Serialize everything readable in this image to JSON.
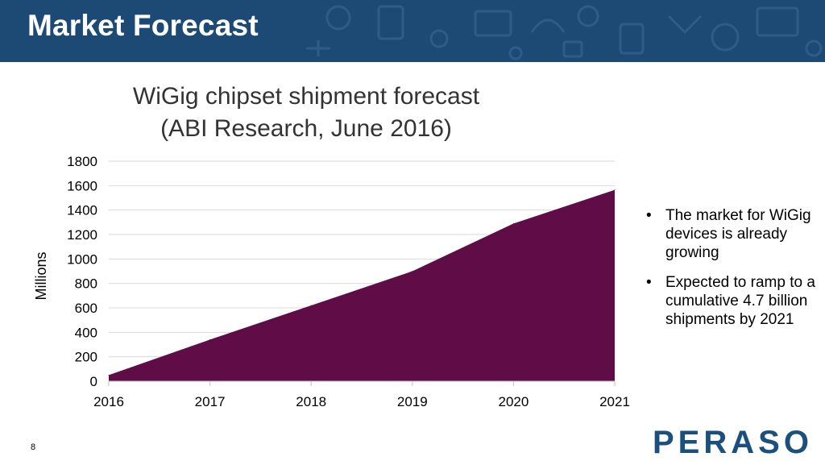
{
  "header": {
    "title": "Market Forecast"
  },
  "chart_data": {
    "type": "area",
    "title": "WiGig chipset shipment forecast (ABI Research, June 2016)",
    "title_lines": [
      "WiGig chipset shipment forecast",
      "(ABI Research, June 2016)"
    ],
    "x": [
      "2016",
      "2017",
      "2018",
      "2019",
      "2020",
      "2021"
    ],
    "values": [
      50,
      340,
      620,
      900,
      1290,
      1565
    ],
    "xlabel": "",
    "ylabel": "Millions",
    "ylim": [
      0,
      1800
    ],
    "yticks": [
      0,
      200,
      400,
      600,
      800,
      1000,
      1200,
      1400,
      1600,
      1800
    ],
    "grid": true,
    "legend": "none",
    "fill_color": "#5f0c47"
  },
  "bullets": [
    "The market for WiGig devices is already growing",
    "Expected to ramp to a cumulative 4.7 billion shipments by 2021"
  ],
  "footer": {
    "page_number": "8",
    "logo_text": "PERASO"
  },
  "colors": {
    "header_bg": "#1c4a74",
    "logo": "#1b4f7d",
    "grid": "#d9d9d9"
  }
}
